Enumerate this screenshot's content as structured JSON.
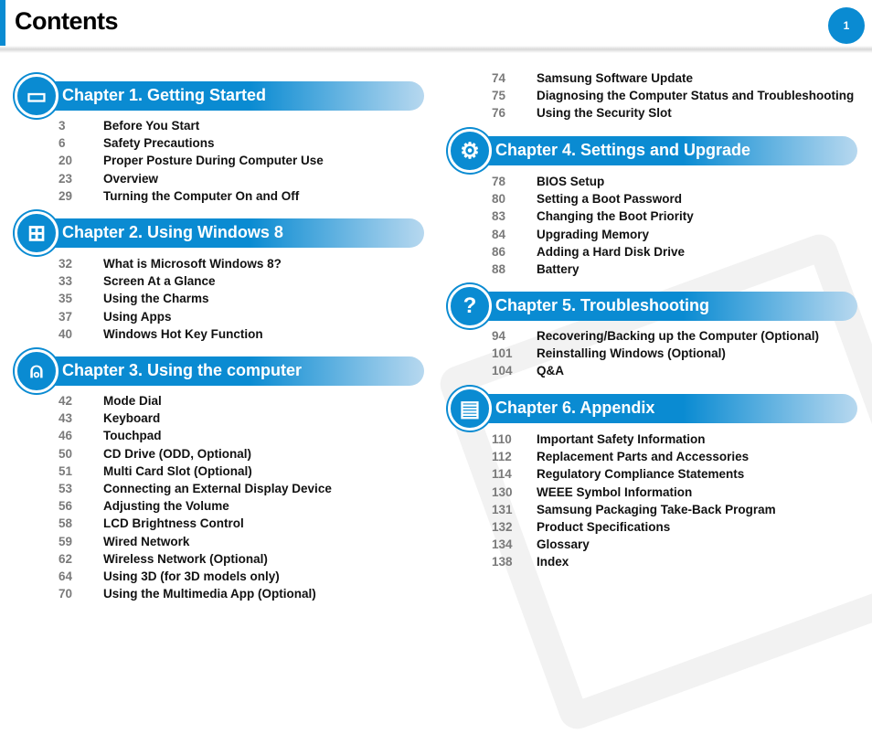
{
  "header": {
    "title": "Contents",
    "page": "1"
  },
  "colors": {
    "accent": "#0a8bd2"
  },
  "left": [
    {
      "chapter": "Chapter 1. Getting Started",
      "icon": "laptop-icon",
      "items": [
        [
          "3",
          "Before You Start"
        ],
        [
          "6",
          "Safety Precautions"
        ],
        [
          "20",
          "Proper Posture During Computer Use"
        ],
        [
          "23",
          "Overview"
        ],
        [
          "29",
          "Turning the Computer On and Off"
        ]
      ]
    },
    {
      "chapter": "Chapter 2. Using Windows 8",
      "icon": "windows-icon",
      "items": [
        [
          "32",
          "What is Microsoft Windows 8?"
        ],
        [
          "33",
          "Screen At a Glance"
        ],
        [
          "35",
          "Using the Charms"
        ],
        [
          "37",
          "Using Apps"
        ],
        [
          "40",
          "Windows Hot Key Function"
        ]
      ]
    },
    {
      "chapter": "Chapter 3. Using the computer",
      "icon": "mouse-icon",
      "items": [
        [
          "42",
          "Mode Dial"
        ],
        [
          "43",
          "Keyboard"
        ],
        [
          "46",
          "Touchpad"
        ],
        [
          "50",
          "CD Drive (ODD, Optional)"
        ],
        [
          "51",
          "Multi Card Slot (Optional)"
        ],
        [
          "53",
          "Connecting an External Display Device"
        ],
        [
          "56",
          "Adjusting the Volume"
        ],
        [
          "58",
          "LCD Brightness Control"
        ],
        [
          "59",
          "Wired Network"
        ],
        [
          "62",
          "Wireless Network (Optional)"
        ],
        [
          "64",
          "Using 3D (for 3D models only)"
        ],
        [
          "70",
          "Using the Multimedia App (Optional)"
        ]
      ]
    }
  ],
  "continued": [
    [
      "74",
      "Samsung Software Update"
    ],
    [
      "75",
      "Diagnosing the Computer Status and Troubleshooting"
    ],
    [
      "76",
      "Using the Security Slot"
    ]
  ],
  "right": [
    {
      "chapter": "Chapter 4. Settings and Upgrade",
      "icon": "gears-icon",
      "items": [
        [
          "78",
          "BIOS Setup"
        ],
        [
          "80",
          "Setting a Boot Password"
        ],
        [
          "83",
          "Changing the Boot Priority"
        ],
        [
          "84",
          "Upgrading Memory"
        ],
        [
          "86",
          "Adding a Hard Disk Drive"
        ],
        [
          "88",
          "Battery"
        ]
      ]
    },
    {
      "chapter": "Chapter 5. Troubleshooting",
      "icon": "question-icon",
      "items": [
        [
          "94",
          "Recovering/Backing up the Computer (Optional)"
        ],
        [
          "101",
          "Reinstalling Windows (Optional)"
        ],
        [
          "104",
          "Q&A"
        ]
      ]
    },
    {
      "chapter": "Chapter 6. Appendix",
      "icon": "book-icon",
      "items": [
        [
          "110",
          "Important Safety Information"
        ],
        [
          "112",
          "Replacement Parts and Accessories"
        ],
        [
          "114",
          "Regulatory Compliance Statements"
        ],
        [
          "130",
          "WEEE Symbol Information"
        ],
        [
          "131",
          "Samsung Packaging Take-Back Program"
        ],
        [
          "132",
          "Product Specifications"
        ],
        [
          "134",
          "Glossary"
        ],
        [
          "138",
          "Index"
        ]
      ]
    }
  ]
}
